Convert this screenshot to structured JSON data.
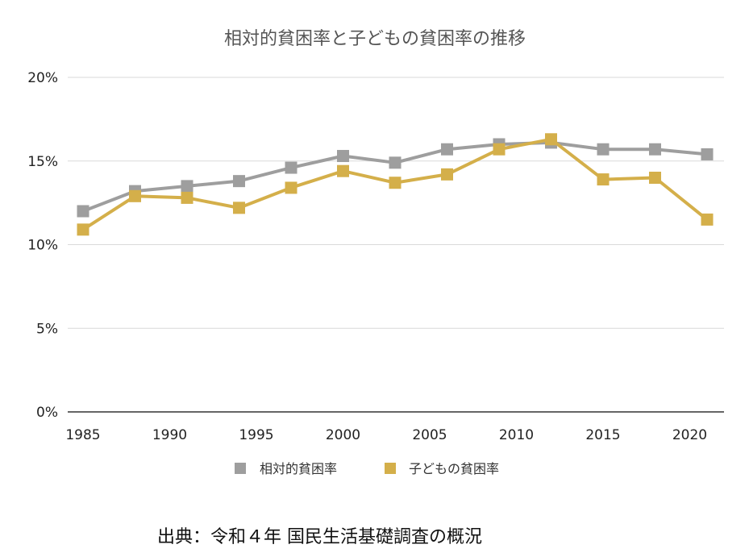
{
  "chart_data": {
    "type": "line",
    "title": "相対的貧困率と子どもの貧困率の推移",
    "x": [
      1985,
      1988,
      1991,
      1994,
      1997,
      2000,
      2003,
      2006,
      2009,
      2012,
      2015,
      2018,
      2021
    ],
    "series": [
      {
        "name": "相対的貧困率",
        "color": "#9e9e9e",
        "values": [
          12.0,
          13.2,
          13.5,
          13.8,
          14.6,
          15.3,
          14.9,
          15.7,
          16.0,
          16.1,
          15.7,
          15.7,
          15.4
        ]
      },
      {
        "name": "子どもの貧困率",
        "color": "#d4af4a",
        "values": [
          10.9,
          12.9,
          12.8,
          12.2,
          13.4,
          14.4,
          13.7,
          14.2,
          15.7,
          16.3,
          13.9,
          14.0,
          11.5
        ]
      }
    ],
    "xlim": [
      1985,
      2021
    ],
    "ylim": [
      0,
      20
    ],
    "x_ticks": [
      "1985",
      "1990",
      "1995",
      "2000",
      "2005",
      "2010",
      "2015",
      "2020"
    ],
    "x_tick_values": [
      1985,
      1990,
      1995,
      2000,
      2005,
      2010,
      2015,
      2020
    ],
    "y_ticks": [
      "0%",
      "5%",
      "10%",
      "15%",
      "20%"
    ],
    "y_tick_values": [
      0,
      5,
      10,
      15,
      20
    ],
    "grid": true,
    "legend_position": "bottom"
  },
  "source_note": "出典：令和４年 国民生活基礎調査の概況"
}
